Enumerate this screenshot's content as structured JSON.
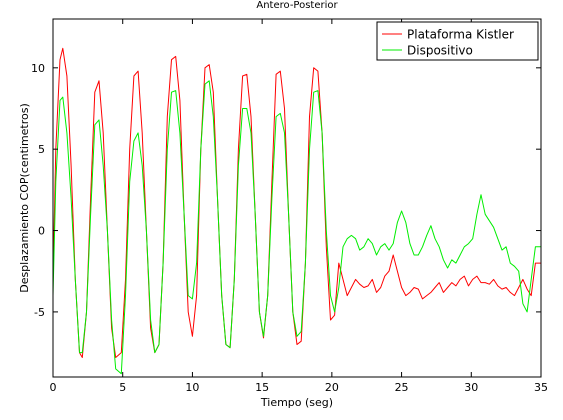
{
  "chart_data": {
    "type": "line",
    "title": "Antero-Posterior",
    "xlabel": "Tiempo (seg)",
    "ylabel": "Desplazamiento COP(centimetros)",
    "xlim": [
      0,
      35
    ],
    "ylim": [
      -9,
      13
    ],
    "xticks": [
      0,
      5,
      10,
      15,
      20,
      25,
      30,
      35
    ],
    "yticks": [
      -5,
      0,
      5,
      10
    ],
    "grid": false,
    "legend_position": "top-right",
    "series": [
      {
        "name": "Plataforma Kistler",
        "color": "#ff0000",
        "x": [
          0,
          0.2,
          0.5,
          0.7,
          1.0,
          1.3,
          1.6,
          1.9,
          2.1,
          2.4,
          2.7,
          3.0,
          3.3,
          3.6,
          3.9,
          4.2,
          4.5,
          4.9,
          5.2,
          5.5,
          5.8,
          6.1,
          6.4,
          6.7,
          7.0,
          7.3,
          7.6,
          7.9,
          8.2,
          8.5,
          8.8,
          9.1,
          9.4,
          9.7,
          10.0,
          10.3,
          10.6,
          10.9,
          11.2,
          11.5,
          11.8,
          12.1,
          12.4,
          12.7,
          13.0,
          13.3,
          13.6,
          13.9,
          14.2,
          14.5,
          14.8,
          15.1,
          15.4,
          15.7,
          16.0,
          16.3,
          16.6,
          16.9,
          17.2,
          17.5,
          17.8,
          18.1,
          18.4,
          18.7,
          19.0,
          19.3,
          19.6,
          19.9,
          20.2,
          20.5,
          20.8,
          21.1,
          21.4,
          21.7,
          22.0,
          22.3,
          22.6,
          22.9,
          23.2,
          23.5,
          23.8,
          24.1,
          24.4,
          24.7,
          25.0,
          25.3,
          25.6,
          25.9,
          26.2,
          26.5,
          26.8,
          27.1,
          27.4,
          27.7,
          28.0,
          28.3,
          28.6,
          28.9,
          29.2,
          29.5,
          29.8,
          30.1,
          30.4,
          30.7,
          31.0,
          31.3,
          31.6,
          31.9,
          32.2,
          32.5,
          32.8,
          33.1,
          33.4,
          33.7,
          34.0,
          34.3,
          34.6,
          35.0
        ],
        "y": [
          -3,
          5,
          10.5,
          11.2,
          9.5,
          4,
          -3,
          -7.5,
          -7.8,
          -5,
          2,
          8.5,
          9.2,
          6,
          0,
          -6,
          -7.8,
          -7.5,
          -3,
          5,
          9.5,
          9.8,
          6,
          0,
          -6,
          -7.5,
          -7,
          -2,
          7,
          10.5,
          10.7,
          8,
          1,
          -5,
          -6.5,
          -4,
          5,
          10,
          10.2,
          8.5,
          2,
          -4,
          -7,
          -7.2,
          -3,
          5,
          9.5,
          9.6,
          7,
          1,
          -5,
          -6.6,
          -4,
          3,
          9.6,
          9.8,
          7.5,
          1,
          -5,
          -7,
          -6.8,
          -2,
          7,
          10,
          9.8,
          6,
          -1,
          -5.5,
          -5.2,
          -2,
          -3,
          -4,
          -3.5,
          -3,
          -3.3,
          -3.5,
          -3.4,
          -3,
          -3.8,
          -3.5,
          -2.8,
          -2.5,
          -1.5,
          -2.5,
          -3.5,
          -4,
          -3.8,
          -3.5,
          -3.6,
          -4.2,
          -4,
          -3.8,
          -3.5,
          -3.2,
          -3.8,
          -3.5,
          -3.2,
          -3.4,
          -3,
          -2.8,
          -3.4,
          -3,
          -2.8,
          -3.2,
          -3.2,
          -3.3,
          -3,
          -3.4,
          -3.6,
          -3.5,
          -3.8,
          -4,
          -3.5,
          -3,
          -3.6,
          -4,
          -2,
          -2
        ]
      },
      {
        "name": "Dispositivo",
        "color": "#00ee00",
        "x": [
          0,
          0.2,
          0.5,
          0.7,
          1.0,
          1.3,
          1.6,
          1.9,
          2.1,
          2.4,
          2.7,
          3.0,
          3.3,
          3.6,
          3.9,
          4.2,
          4.5,
          4.9,
          5.2,
          5.5,
          5.8,
          6.1,
          6.4,
          6.7,
          7.0,
          7.3,
          7.6,
          7.9,
          8.2,
          8.5,
          8.8,
          9.1,
          9.4,
          9.7,
          10.0,
          10.3,
          10.6,
          10.9,
          11.2,
          11.5,
          11.8,
          12.1,
          12.4,
          12.7,
          13.0,
          13.3,
          13.6,
          13.9,
          14.2,
          14.5,
          14.8,
          15.1,
          15.4,
          15.7,
          16.0,
          16.3,
          16.6,
          16.9,
          17.2,
          17.5,
          17.8,
          18.1,
          18.4,
          18.7,
          19.0,
          19.3,
          19.6,
          19.9,
          20.2,
          20.5,
          20.8,
          21.1,
          21.4,
          21.7,
          22.0,
          22.3,
          22.6,
          22.9,
          23.2,
          23.5,
          23.8,
          24.1,
          24.4,
          24.7,
          25.0,
          25.3,
          25.6,
          25.9,
          26.2,
          26.5,
          26.8,
          27.1,
          27.4,
          27.7,
          28.0,
          28.3,
          28.6,
          28.9,
          29.2,
          29.5,
          29.8,
          30.1,
          30.4,
          30.7,
          31.0,
          31.3,
          31.6,
          31.9,
          32.2,
          32.5,
          32.8,
          33.1,
          33.4,
          33.7,
          34.0,
          34.3,
          34.6,
          35.0
        ],
        "y": [
          -4,
          3,
          8,
          8.2,
          6,
          2,
          -3,
          -7.5,
          -7.5,
          -5,
          1,
          6.5,
          6.8,
          4,
          0,
          -5.5,
          -8.5,
          -8.8,
          -4,
          3,
          5.5,
          6,
          4,
          0,
          -5.5,
          -7.5,
          -7,
          -2,
          5,
          8.5,
          8.6,
          6,
          1,
          -4,
          -4.2,
          -2,
          5,
          9,
          9.2,
          7,
          2,
          -4,
          -7,
          -7.2,
          -3,
          4,
          7.5,
          7.5,
          6,
          1,
          -5,
          -6.5,
          -4,
          2,
          7,
          7.2,
          6,
          1,
          -5,
          -6.5,
          -6.2,
          -2,
          5,
          8.5,
          8.6,
          6,
          0,
          -4,
          -5,
          -3.5,
          -1,
          -0.5,
          -0.3,
          -0.5,
          -1.2,
          -1,
          -0.5,
          -0.8,
          -1.5,
          -1,
          -0.8,
          -1.2,
          -0.8,
          0.5,
          1.2,
          0.5,
          -0.8,
          -1.5,
          -1.5,
          -1,
          -0.3,
          0.3,
          -0.5,
          -1,
          -1.8,
          -2.3,
          -1.8,
          -2,
          -1.5,
          -1,
          -0.8,
          -0.5,
          1,
          2.2,
          1,
          0.6,
          0.2,
          -0.5,
          -1.2,
          -1,
          -2,
          -2.2,
          -2.5,
          -4.5,
          -5,
          -3,
          -1,
          -1
        ]
      }
    ]
  }
}
